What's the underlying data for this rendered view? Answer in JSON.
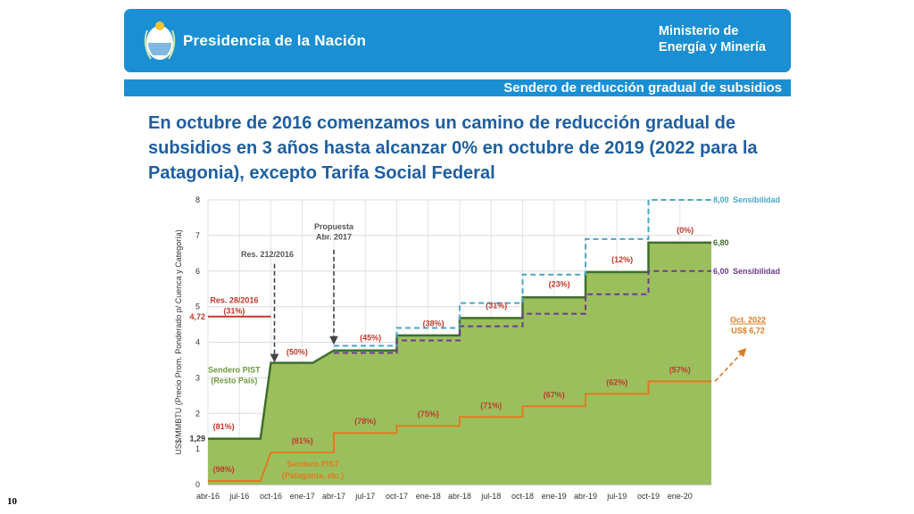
{
  "header": {
    "org": "Presidencia de la Nación",
    "ministry_line1": "Ministerio de",
    "ministry_line2": "Energía y Minería",
    "section": "Sendero de reducción gradual de subsidios"
  },
  "headline": "En octubre de 2016 comenzamos un camino de reducción gradual de subsidios en 3 años hasta alcanzar 0% en octubre de 2019 (2022 para la Patagonia), excepto Tarifa Social Federal",
  "page_number": "10",
  "colors": {
    "banner": "#1a8fd3",
    "headline": "#1f5fa0",
    "area_fill": "#9cbf5e",
    "area_line": "#3f6f2c",
    "patagonia": "#e07a1f",
    "upper_sens": "#4aa8c6",
    "lower_sens": "#6b3c8f",
    "res_line": "#c0392b",
    "label_red": "#c0392b",
    "label_green": "#6e9b3c"
  },
  "chart_data": {
    "type": "area",
    "ylabel": "US$/MMBTU (Precio Prom. Ponderado p/ Cuenca y Categoría)",
    "ylim": [
      0,
      8
    ],
    "yticks": [
      0,
      1,
      2,
      3,
      4,
      5,
      6,
      7,
      8
    ],
    "xlim": [
      0,
      48
    ],
    "xticks": [
      {
        "x": 0,
        "label": "abr-16"
      },
      {
        "x": 3,
        "label": "jul-16"
      },
      {
        "x": 6,
        "label": "oct-16"
      },
      {
        "x": 9,
        "label": "ene-17"
      },
      {
        "x": 12,
        "label": "abr-17"
      },
      {
        "x": 15,
        "label": "jul-17"
      },
      {
        "x": 18,
        "label": "oct-17"
      },
      {
        "x": 21,
        "label": "ene-18"
      },
      {
        "x": 24,
        "label": "abr-18"
      },
      {
        "x": 27,
        "label": "jul-18"
      },
      {
        "x": 30,
        "label": "oct-18"
      },
      {
        "x": 33,
        "label": "ene-19"
      },
      {
        "x": 36,
        "label": "abr-19"
      },
      {
        "x": 39,
        "label": "jul-19"
      },
      {
        "x": 42,
        "label": "oct-19"
      },
      {
        "x": 45,
        "label": "ene-20"
      }
    ],
    "series": [
      {
        "name": "Sendero PIST (Resto País)",
        "style": "area",
        "points": [
          [
            0,
            1.29
          ],
          [
            5,
            1.29
          ],
          [
            6,
            3.42
          ],
          [
            10,
            3.42
          ],
          [
            12,
            3.77
          ],
          [
            18,
            3.77
          ],
          [
            18,
            4.19
          ],
          [
            24,
            4.19
          ],
          [
            24,
            4.68
          ],
          [
            30,
            4.68
          ],
          [
            30,
            5.26
          ],
          [
            36,
            5.26
          ],
          [
            36,
            5.97
          ],
          [
            42,
            5.97
          ],
          [
            42,
            6.8
          ],
          [
            48,
            6.8
          ]
        ]
      },
      {
        "name": "Sendero PIST (Patagonia, etc.)",
        "style": "line",
        "points": [
          [
            0,
            0.1
          ],
          [
            5,
            0.1
          ],
          [
            6,
            0.9
          ],
          [
            12,
            0.9
          ],
          [
            12,
            1.45
          ],
          [
            18,
            1.45
          ],
          [
            18,
            1.65
          ],
          [
            24,
            1.65
          ],
          [
            24,
            1.9
          ],
          [
            30,
            1.9
          ],
          [
            30,
            2.2
          ],
          [
            36,
            2.2
          ],
          [
            36,
            2.55
          ],
          [
            42,
            2.55
          ],
          [
            42,
            2.9
          ],
          [
            48,
            2.9
          ]
        ]
      },
      {
        "name": "Sensibilidad",
        "style": "dashed-upper",
        "points": [
          [
            12,
            3.9
          ],
          [
            18,
            3.9
          ],
          [
            18,
            4.4
          ],
          [
            24,
            4.4
          ],
          [
            24,
            5.1
          ],
          [
            30,
            5.1
          ],
          [
            30,
            5.9
          ],
          [
            36,
            5.9
          ],
          [
            36,
            6.9
          ],
          [
            42,
            6.9
          ],
          [
            42,
            8.0
          ],
          [
            48,
            8.0
          ]
        ]
      },
      {
        "name": "Sensibilidad",
        "style": "dashed-lower",
        "points": [
          [
            12,
            3.7
          ],
          [
            18,
            3.7
          ],
          [
            18,
            4.05
          ],
          [
            24,
            4.05
          ],
          [
            24,
            4.45
          ],
          [
            30,
            4.45
          ],
          [
            30,
            4.8
          ],
          [
            36,
            4.8
          ],
          [
            36,
            5.35
          ],
          [
            42,
            5.35
          ],
          [
            42,
            6.0
          ],
          [
            48,
            6.0
          ]
        ]
      },
      {
        "name": "Res. 28/2016",
        "style": "res",
        "points": [
          [
            0,
            4.72
          ],
          [
            6,
            4.72
          ]
        ]
      }
    ],
    "annotations": {
      "res212": "Res. 212/2016",
      "propuesta_1": "Propuesta",
      "propuesta_2": "Abr. 2017",
      "res28": "Res. 28/2016",
      "res28_pct": "(31%)",
      "val_472": "4,72",
      "val_129": "1,29",
      "val_800": "8,00",
      "val_680": "6,80",
      "val_600": "6,00",
      "sens_upper": "Sensibilidad",
      "sens_lower": "Sensibilidad",
      "pist_resto_1": "Sendero PIST",
      "pist_resto_2": "(Resto País)",
      "pist_pat_1": "Sendero PIST",
      "pist_pat_2": "(Patagonia, etc.)",
      "oct2022_1": "Oct. 2022",
      "oct2022_2": "US$ 6,72"
    },
    "upper_pct_labels": [
      {
        "x": 1.5,
        "y": 1.45,
        "text": "(81%)"
      },
      {
        "x": 8.5,
        "y": 3.55,
        "text": "(50%)"
      },
      {
        "x": 15.5,
        "y": 3.95,
        "text": "(45%)"
      },
      {
        "x": 21.5,
        "y": 4.35,
        "text": "(38%)"
      },
      {
        "x": 27.5,
        "y": 4.85,
        "text": "(31%)"
      },
      {
        "x": 33.5,
        "y": 5.45,
        "text": "(23%)"
      },
      {
        "x": 39.5,
        "y": 6.15,
        "text": "(12%)"
      },
      {
        "x": 45.5,
        "y": 6.97,
        "text": "(0%)"
      }
    ],
    "lower_pct_labels": [
      {
        "x": 1.5,
        "y": 0.25,
        "text": "(98%)"
      },
      {
        "x": 9.0,
        "y": 1.05,
        "text": "(81%)"
      },
      {
        "x": 15.0,
        "y": 1.6,
        "text": "(78%)"
      },
      {
        "x": 21.0,
        "y": 1.8,
        "text": "(75%)"
      },
      {
        "x": 27.0,
        "y": 2.05,
        "text": "(71%)"
      },
      {
        "x": 33.0,
        "y": 2.35,
        "text": "(67%)"
      },
      {
        "x": 39.0,
        "y": 2.7,
        "text": "(62%)"
      },
      {
        "x": 45.0,
        "y": 3.05,
        "text": "(57%)"
      }
    ]
  }
}
